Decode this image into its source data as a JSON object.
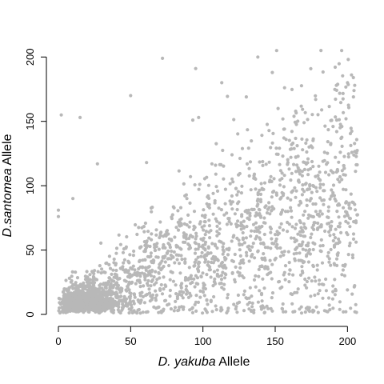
{
  "chart_data": {
    "type": "scatter",
    "title": "",
    "xlabel_italic": "D. yakuba",
    "xlabel_rest": " Allele",
    "ylabel_italic": "D.santomea",
    "ylabel_rest": " Allele",
    "xlim": [
      0,
      207
    ],
    "ylim": [
      0,
      207
    ],
    "xticks": [
      0,
      50,
      100,
      150,
      200
    ],
    "yticks": [
      0,
      50,
      100,
      150,
      200
    ],
    "point_color": "#b8b8b8",
    "grid": false,
    "legend": "none",
    "generated_cloud": {
      "seed": 7,
      "count": 2600,
      "description": "positive correlation; dense cluster near origin (x 2-45, y 2-30), spreading wider with increasing x"
    },
    "series": [
      {
        "values": [
          [
            2,
            155
          ],
          [
            15,
            153
          ],
          [
            50,
            170
          ],
          [
            95,
            191
          ],
          [
            113,
            180
          ],
          [
            138,
            200
          ],
          [
            151,
            205
          ],
          [
            196,
            205
          ],
          [
            72,
            199
          ],
          [
            190,
            146
          ],
          [
            178,
            167
          ],
          [
            170,
            149
          ],
          [
            205,
            178
          ],
          [
            27,
            117
          ],
          [
            61,
            118
          ],
          [
            93,
            151
          ],
          [
            97,
            153
          ],
          [
            152,
            160
          ],
          [
            130,
            169
          ],
          [
            0,
            81
          ],
          [
            0,
            76
          ],
          [
            10,
            90
          ],
          [
            200,
            180
          ],
          [
            199,
            152
          ],
          [
            148,
            188
          ]
        ]
      }
    ]
  }
}
